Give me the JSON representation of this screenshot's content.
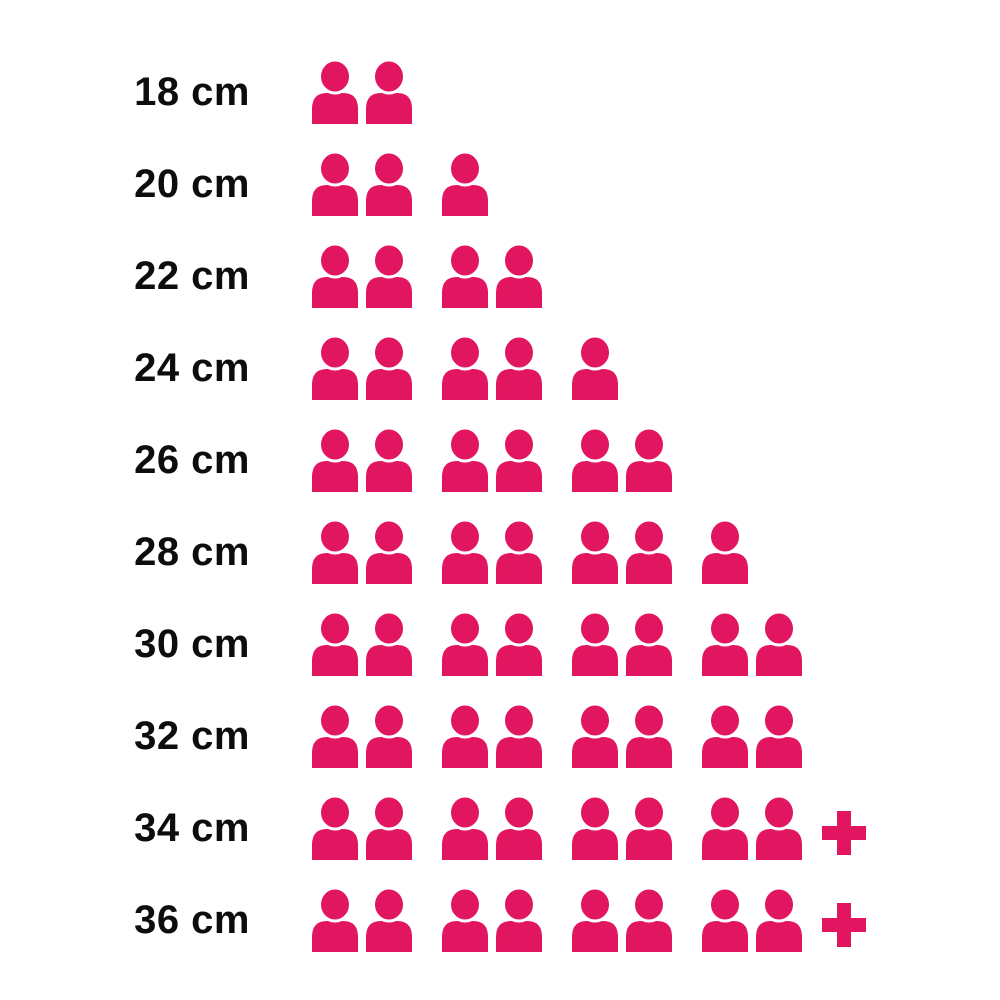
{
  "page": {
    "background": "#FFFFFF"
  },
  "chart_data": {
    "type": "pictogram",
    "title": "",
    "xlabel": "",
    "ylabel": "",
    "grid": false,
    "legend": "none",
    "unit_per_icon": 1,
    "icon": "person-icon",
    "overflow_icon": "plus-icon",
    "icon_color": "#E21660",
    "label_color": "#0d0d0d",
    "icons_per_group": 2,
    "categories": [
      "18 cm",
      "20 cm",
      "22 cm",
      "24 cm",
      "26 cm",
      "28 cm",
      "30 cm",
      "32 cm",
      "34 cm",
      "36 cm"
    ],
    "values": [
      2,
      3,
      4,
      5,
      6,
      7,
      8,
      8,
      8,
      8
    ],
    "overflow_plus": [
      false,
      false,
      false,
      false,
      false,
      false,
      false,
      false,
      true,
      true
    ]
  }
}
